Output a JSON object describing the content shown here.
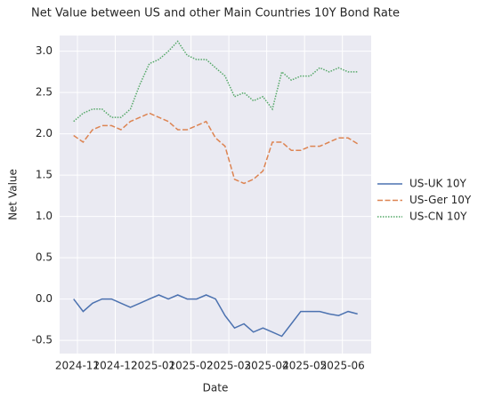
{
  "chart_data": {
    "type": "line",
    "title": "Net Value between US and other Main Countries 10Y Bond Rate",
    "x_label": "Date",
    "y_label": "Net Value",
    "x": [
      -0.1,
      0.15,
      0.4,
      0.65,
      0.9,
      1.15,
      1.4,
      1.65,
      1.9,
      2.15,
      2.4,
      2.65,
      2.9,
      3.15,
      3.4,
      3.65,
      3.9,
      4.15,
      4.4,
      4.65,
      4.9,
      5.15,
      5.4,
      5.65,
      5.9,
      6.15,
      6.4,
      6.65,
      6.9,
      7.15,
      7.4
    ],
    "series": [
      {
        "name": "US-UK 10Y",
        "color": "#4c72b0",
        "dash": "solid",
        "values": [
          0.0,
          -0.15,
          -0.05,
          0.0,
          0.0,
          -0.05,
          -0.1,
          -0.05,
          0.0,
          0.05,
          0.0,
          0.05,
          0.0,
          0.0,
          0.05,
          0.0,
          -0.2,
          -0.35,
          -0.3,
          -0.4,
          -0.35,
          -0.4,
          -0.45,
          -0.3,
          -0.15,
          -0.15,
          -0.15,
          -0.18,
          -0.2,
          -0.15,
          -0.18
        ]
      },
      {
        "name": "US-Ger 10Y",
        "color": "#dd8452",
        "dash": "dashed",
        "values": [
          1.98,
          1.9,
          2.05,
          2.1,
          2.1,
          2.05,
          2.15,
          2.2,
          2.25,
          2.2,
          2.15,
          2.05,
          2.05,
          2.1,
          2.15,
          1.95,
          1.85,
          1.45,
          1.4,
          1.45,
          1.55,
          1.9,
          1.9,
          1.8,
          1.8,
          1.85,
          1.85,
          1.9,
          1.95,
          1.95,
          1.88
        ]
      },
      {
        "name": "US-CN 10Y",
        "color": "#55a868",
        "dash": "dotted",
        "values": [
          2.15,
          2.25,
          2.3,
          2.3,
          2.2,
          2.2,
          2.3,
          2.6,
          2.85,
          2.9,
          3.0,
          3.12,
          2.95,
          2.9,
          2.9,
          2.8,
          2.7,
          2.45,
          2.5,
          2.4,
          2.45,
          2.3,
          2.75,
          2.65,
          2.7,
          2.7,
          2.8,
          2.75,
          2.8,
          2.75,
          2.75
        ]
      }
    ],
    "xlim": [
      -0.47,
      7.76
    ],
    "xticks": [
      {
        "value": 0,
        "label": "2024-11"
      },
      {
        "value": 1,
        "label": "2024-12"
      },
      {
        "value": 2,
        "label": "2025-01"
      },
      {
        "value": 3,
        "label": "2025-02"
      },
      {
        "value": 4,
        "label": "2025-03"
      },
      {
        "value": 5,
        "label": "2025-04"
      },
      {
        "value": 6,
        "label": "2025-05"
      },
      {
        "value": 7,
        "label": "2025-06"
      }
    ],
    "ylim": [
      -0.66,
      3.19
    ],
    "yticks": [
      -0.5,
      {
        "value": 0,
        "label": "0.0"
      },
      0.5,
      {
        "value": 1,
        "label": "1.0"
      },
      1.5,
      {
        "value": 2,
        "label": "2.0"
      },
      2.5,
      {
        "value": 3,
        "label": "3.0"
      }
    ],
    "grid": true,
    "legend": "outside right"
  }
}
